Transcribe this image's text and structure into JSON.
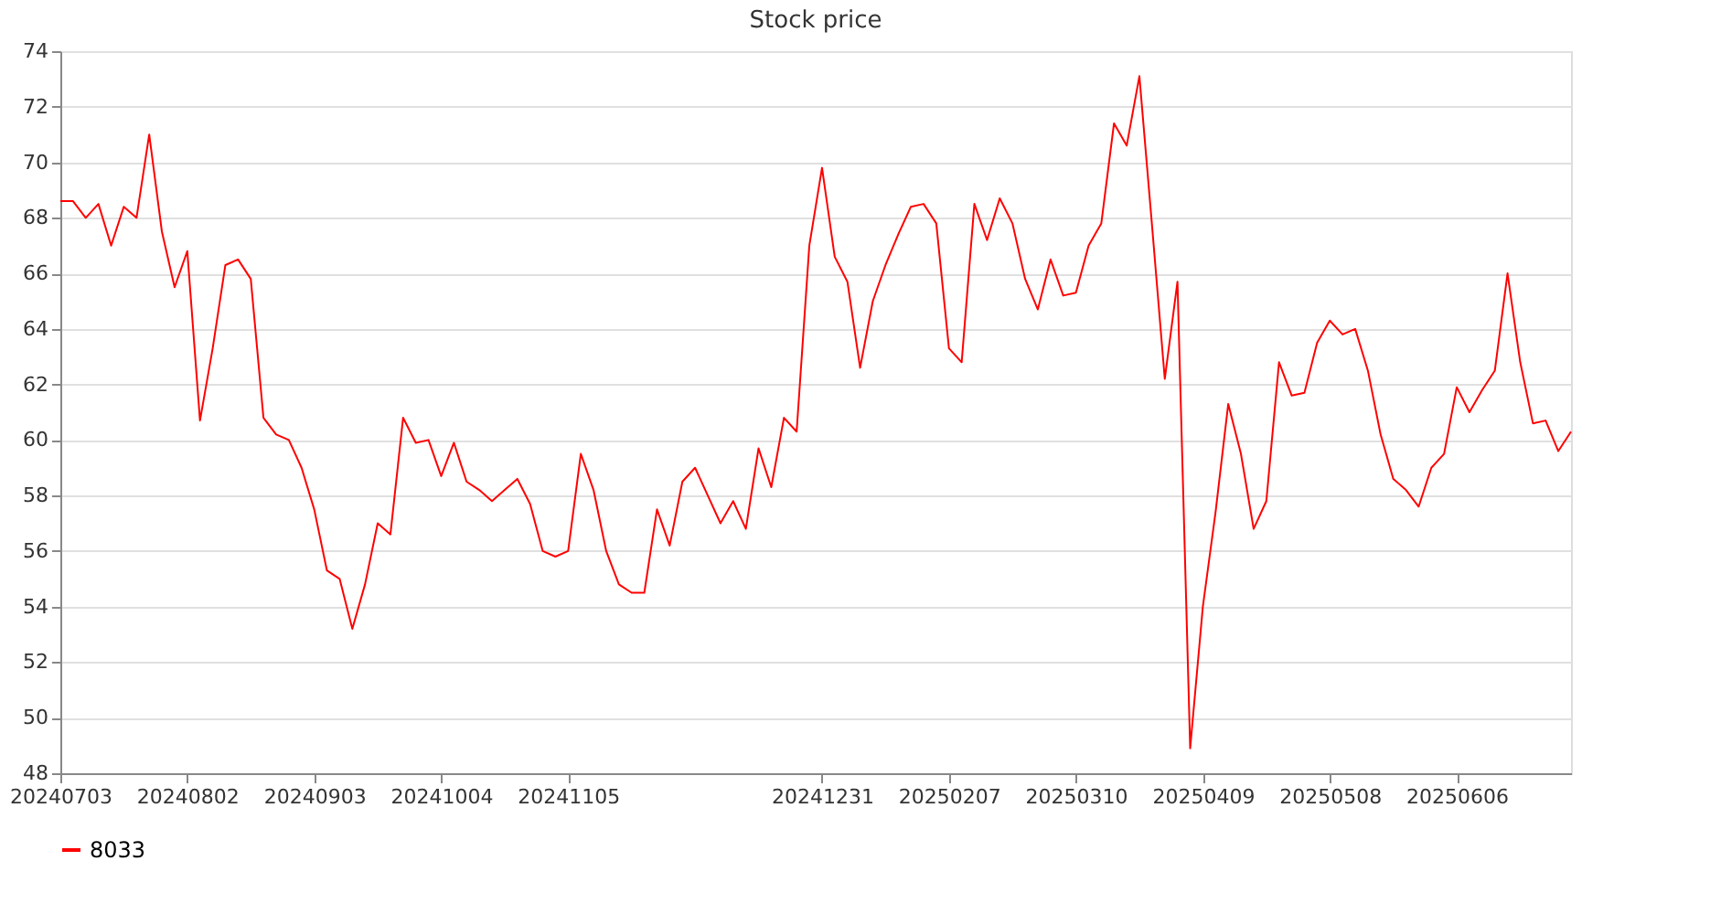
{
  "chart_data": {
    "type": "line",
    "title": "Stock price",
    "categories": [
      "20240703",
      null,
      null,
      null,
      null,
      null,
      null,
      null,
      null,
      null,
      "20240802",
      null,
      null,
      null,
      null,
      null,
      null,
      null,
      null,
      null,
      "20240903",
      null,
      null,
      null,
      null,
      null,
      null,
      null,
      null,
      null,
      "20241004",
      null,
      null,
      null,
      null,
      null,
      null,
      null,
      null,
      null,
      "20241105",
      null,
      null,
      null,
      null,
      null,
      null,
      null,
      null,
      null,
      null,
      null,
      null,
      null,
      null,
      null,
      null,
      null,
      null,
      null,
      "20241231",
      null,
      null,
      null,
      null,
      null,
      null,
      null,
      null,
      null,
      "20250207",
      null,
      null,
      null,
      null,
      null,
      null,
      null,
      null,
      null,
      "20250310",
      null,
      null,
      null,
      null,
      null,
      null,
      null,
      null,
      null,
      "20250409",
      null,
      null,
      null,
      null,
      null,
      null,
      null,
      null,
      null,
      "20250508",
      null,
      null,
      null,
      null,
      null,
      null,
      null,
      null,
      null,
      "20250606",
      null,
      null,
      null,
      null,
      null,
      null,
      null,
      null,
      null
    ],
    "series": [
      {
        "name": "8033",
        "color": "#ff0000",
        "values": [
          68.6,
          68.6,
          68.0,
          68.5,
          67.0,
          68.4,
          68.0,
          71.0,
          67.5,
          65.5,
          66.8,
          60.7,
          63.3,
          66.3,
          66.5,
          65.8,
          60.8,
          60.2,
          60.0,
          59.0,
          57.5,
          55.3,
          55.0,
          53.2,
          54.8,
          57.0,
          56.6,
          60.8,
          59.9,
          60.0,
          58.7,
          59.9,
          58.5,
          58.2,
          57.8,
          58.2,
          58.6,
          57.7,
          56.0,
          55.8,
          56.0,
          59.5,
          58.2,
          56.0,
          54.8,
          54.5,
          54.5,
          57.5,
          56.2,
          58.5,
          59.0,
          58.0,
          57.0,
          57.8,
          56.8,
          59.7,
          58.3,
          60.8,
          60.3,
          67.0,
          69.8,
          66.6,
          65.7,
          62.6,
          65.0,
          66.3,
          67.4,
          68.4,
          68.5,
          67.8,
          63.3,
          62.8,
          68.5,
          67.2,
          68.7,
          67.8,
          65.8,
          64.7,
          66.5,
          65.2,
          65.3,
          67.0,
          67.8,
          71.4,
          70.6,
          73.1,
          67.7,
          62.2,
          65.7,
          48.9,
          54.0,
          57.4,
          61.3,
          59.5,
          56.8,
          57.8,
          62.8,
          61.6,
          61.7,
          63.5,
          64.3,
          63.8,
          64.0,
          62.5,
          60.2,
          58.6,
          58.2,
          57.6,
          59.0,
          59.5,
          61.9,
          61.0,
          61.8,
          62.5,
          66.0,
          62.8,
          60.6,
          60.7,
          59.6,
          60.3
        ]
      }
    ],
    "ylim": [
      48,
      74
    ],
    "yticks": [
      48,
      50,
      52,
      54,
      56,
      58,
      60,
      62,
      64,
      66,
      68,
      70,
      72,
      74
    ],
    "grid": "y",
    "legend": "bottom",
    "marker": "none",
    "line_style": "solid"
  }
}
